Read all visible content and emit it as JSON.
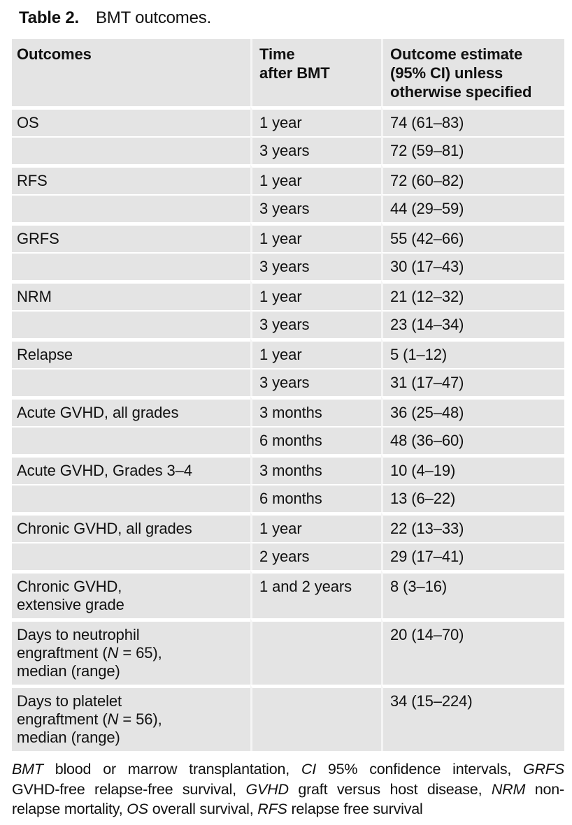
{
  "caption": {
    "label": "Table 2.",
    "title": "BMT outcomes."
  },
  "table": {
    "columns": [
      {
        "id": "outcomes",
        "label": "Outcomes"
      },
      {
        "id": "time-after-bmt",
        "label": "Time\nafter BMT"
      },
      {
        "id": "outcome-estimate",
        "label": "Outcome estimate\n(95% CI) unless\notherwise specified"
      }
    ],
    "rows": [
      {
        "outcome": "OS",
        "time": "1 year",
        "estimate": "74 (61–83)",
        "new_group": true
      },
      {
        "outcome": "",
        "time": "3 years",
        "estimate": "72 (59–81)",
        "new_group": false
      },
      {
        "outcome": "RFS",
        "time": "1 year",
        "estimate": "72 (60–82)",
        "new_group": true
      },
      {
        "outcome": "",
        "time": "3 years",
        "estimate": "44 (29–59)",
        "new_group": false
      },
      {
        "outcome": "GRFS",
        "time": "1 year",
        "estimate": "55 (42–66)",
        "new_group": true
      },
      {
        "outcome": "",
        "time": "3 years",
        "estimate": "30 (17–43)",
        "new_group": false
      },
      {
        "outcome": "NRM",
        "time": "1 year",
        "estimate": "21 (12–32)",
        "new_group": true
      },
      {
        "outcome": "",
        "time": "3 years",
        "estimate": "23 (14–34)",
        "new_group": false
      },
      {
        "outcome": "Relapse",
        "time": "1 year",
        "estimate": "5 (1–12)",
        "new_group": true
      },
      {
        "outcome": "",
        "time": "3 years",
        "estimate": "31 (17–47)",
        "new_group": false
      },
      {
        "outcome": "Acute GVHD, all grades",
        "time": "3 months",
        "estimate": "36 (25–48)",
        "new_group": true
      },
      {
        "outcome": "",
        "time": "6 months",
        "estimate": "48 (36–60)",
        "new_group": false
      },
      {
        "outcome": "Acute GVHD, Grades 3–4",
        "time": "3 months",
        "estimate": "10 (4–19)",
        "new_group": true
      },
      {
        "outcome": "",
        "time": "6 months",
        "estimate": "13 (6–22)",
        "new_group": false
      },
      {
        "outcome": "Chronic GVHD, all grades",
        "time": "1 year",
        "estimate": "22 (13–33)",
        "new_group": true
      },
      {
        "outcome": "",
        "time": "2 years",
        "estimate": "29 (17–41)",
        "new_group": false
      },
      {
        "outcome": "Chronic GVHD,\nextensive grade",
        "time": "1 and 2 years",
        "estimate": "8 (3–16)",
        "new_group": true
      },
      {
        "outcome": [
          {
            "t": "Days to neutrophil\nengraftment ("
          },
          {
            "t": "N",
            "i": true
          },
          {
            "t": " = 65),\nmedian (range)"
          }
        ],
        "time": "",
        "estimate": "20 (14–70)",
        "new_group": true
      },
      {
        "outcome": [
          {
            "t": "Days to platelet\nengraftment ("
          },
          {
            "t": "N",
            "i": true
          },
          {
            "t": " = 56),\nmedian (range)"
          }
        ],
        "time": "",
        "estimate": "34 (15–224)",
        "new_group": true
      }
    ]
  },
  "footnote": {
    "lines": [
      {
        "justify": true,
        "segments": [
          {
            "t": "BMT",
            "i": true
          },
          {
            "t": " blood or marrow transplantation, "
          },
          {
            "t": "CI",
            "i": true
          },
          {
            "t": " 95% confidence intervals, "
          },
          {
            "t": "GRFS",
            "i": true
          }
        ]
      },
      {
        "justify": true,
        "segments": [
          {
            "t": "GVHD-free relapse-free survival, "
          },
          {
            "t": "GVHD",
            "i": true
          },
          {
            "t": " graft versus host disease, "
          },
          {
            "t": "NRM",
            "i": true
          },
          {
            "t": " non-"
          }
        ]
      },
      {
        "justify": false,
        "segments": [
          {
            "t": "relapse mortality, "
          },
          {
            "t": "OS",
            "i": true
          },
          {
            "t": " overall survival, "
          },
          {
            "t": "RFS",
            "i": true
          },
          {
            "t": " relapse free survival"
          }
        ]
      }
    ]
  },
  "colors": {
    "row_background": "#e4e4e4",
    "row_separator": "#ffffff",
    "column_gap": "#f5f5f5",
    "text": "#111111"
  }
}
